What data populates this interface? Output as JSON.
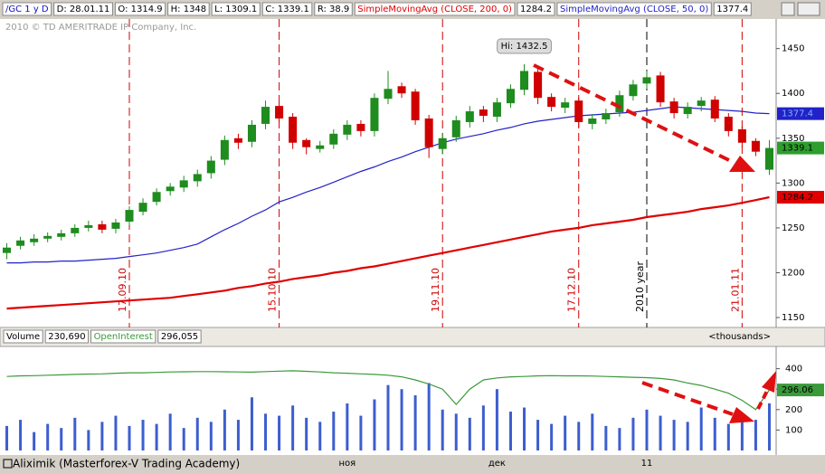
{
  "header": {
    "symbol": "/GC 1 y D",
    "fields": [
      "D: 28.01.11",
      "O: 1314.9",
      "H: 1348",
      "L: 1309.1",
      "C: 1339.1",
      "R: 38.9"
    ]
  },
  "footer": "Aliximik (Masterforex-V Trading Academy)",
  "chart_data": [
    {
      "type": "candlestick",
      "copyright": "2010 © TD AMERITRADE IP Company, Inc.",
      "annotation": "Hi: 1432.5",
      "up_color": "#1e8c1e",
      "down_color": "#d00000",
      "ylim": [
        1146,
        1486
      ],
      "yticks": [
        1150,
        1200,
        1250,
        1300,
        1350,
        1400,
        1450
      ],
      "categories": [
        null,
        null,
        null,
        null,
        null,
        null,
        null,
        null,
        null,
        "17.09.10",
        null,
        null,
        null,
        null,
        null,
        null,
        null,
        null,
        null,
        null,
        "15.10.10",
        null,
        null,
        null,
        null,
        null,
        null,
        null,
        null,
        null,
        null,
        null,
        "19.11.10",
        null,
        null,
        null,
        null,
        null,
        null,
        null,
        null,
        null,
        "17.12.10",
        null,
        null,
        null,
        null,
        "2010 year",
        null,
        null,
        null,
        null,
        null,
        null,
        "21.01.11",
        null,
        null
      ],
      "open": [
        1222,
        1230,
        1234,
        1238,
        1240,
        1244,
        1250,
        1254,
        1249,
        1257,
        1268,
        1279,
        1291,
        1295,
        1302,
        1311,
        1326,
        1350,
        1346,
        1366,
        1386,
        1374,
        1348,
        1338,
        1343,
        1354,
        1366,
        1358,
        1394,
        1408,
        1402,
        1372,
        1338,
        1351,
        1368,
        1382,
        1374,
        1389,
        1404,
        1424,
        1396,
        1384,
        1392,
        1366,
        1371,
        1379,
        1397,
        1411,
        1420,
        1391,
        1377,
        1386,
        1393,
        1374,
        1360,
        1347,
        1314.9
      ],
      "high": [
        1233,
        1240,
        1243,
        1245,
        1248,
        1254,
        1258,
        1258,
        1260,
        1274,
        1283,
        1294,
        1300,
        1308,
        1315,
        1330,
        1353,
        1355,
        1370,
        1392,
        1390,
        1378,
        1350,
        1347,
        1360,
        1370,
        1370,
        1400,
        1425,
        1412,
        1405,
        1376,
        1356,
        1375,
        1386,
        1386,
        1395,
        1410,
        1432.5,
        1428,
        1400,
        1395,
        1395,
        1377,
        1383,
        1403,
        1415,
        1425,
        1424,
        1395,
        1390,
        1396,
        1397,
        1378,
        1363,
        1350,
        1348
      ],
      "low": [
        1215,
        1226,
        1230,
        1234,
        1236,
        1240,
        1246,
        1244,
        1244,
        1253,
        1264,
        1275,
        1286,
        1290,
        1296,
        1305,
        1320,
        1338,
        1340,
        1360,
        1368,
        1338,
        1332,
        1334,
        1338,
        1348,
        1352,
        1352,
        1388,
        1395,
        1365,
        1328,
        1332,
        1346,
        1362,
        1368,
        1368,
        1384,
        1398,
        1388,
        1380,
        1378,
        1362,
        1360,
        1366,
        1374,
        1392,
        1405,
        1385,
        1372,
        1372,
        1380,
        1368,
        1352,
        1340,
        1330,
        1309.1
      ],
      "close": [
        1228,
        1236,
        1238,
        1241,
        1244,
        1250,
        1253,
        1248,
        1256,
        1270,
        1278,
        1290,
        1296,
        1303,
        1310,
        1325,
        1348,
        1345,
        1365,
        1385,
        1372,
        1345,
        1340,
        1342,
        1355,
        1365,
        1358,
        1395,
        1405,
        1400,
        1370,
        1340,
        1350,
        1370,
        1380,
        1375,
        1390,
        1405,
        1425,
        1395,
        1385,
        1390,
        1368,
        1372,
        1378,
        1398,
        1410,
        1418,
        1390,
        1378,
        1385,
        1392,
        1372,
        1358,
        1345,
        1335,
        1339.1
      ],
      "close_color": "#2e9e2e",
      "series": [
        {
          "name": "SimpleMovingAvg (CLOSE, 200, 0)",
          "color": "#e00000",
          "values": [
            1160,
            1161,
            1162,
            1163,
            1164,
            1165,
            1166,
            1167,
            1168,
            1169,
            1170,
            1171,
            1172,
            1174,
            1176,
            1178,
            1180,
            1183,
            1185,
            1188,
            1190,
            1193,
            1195,
            1197,
            1200,
            1202,
            1205,
            1207,
            1210,
            1213,
            1216,
            1219,
            1222,
            1225,
            1228,
            1231,
            1234,
            1237,
            1240,
            1243,
            1246,
            1248,
            1250,
            1253,
            1255,
            1257,
            1259,
            1262,
            1264,
            1266,
            1268,
            1271,
            1273,
            1275,
            1278,
            1281,
            1284.2
          ]
        },
        {
          "name": "SimpleMovingAvg (CLOSE, 50, 0)",
          "color": "#2222c8",
          "values": [
            1211,
            1211,
            1212,
            1212,
            1213,
            1213,
            1214,
            1215,
            1216,
            1218,
            1220,
            1222,
            1225,
            1228,
            1232,
            1240,
            1248,
            1255,
            1263,
            1270,
            1279,
            1284,
            1290,
            1295,
            1301,
            1307,
            1313,
            1318,
            1324,
            1329,
            1335,
            1340,
            1345,
            1349,
            1352,
            1355,
            1359,
            1362,
            1366,
            1369,
            1371,
            1373,
            1375,
            1376,
            1377,
            1378,
            1379,
            1381,
            1383,
            1385,
            1384,
            1383,
            1382,
            1381,
            1380,
            1378,
            1377.4
          ]
        }
      ]
    },
    {
      "type": "bar",
      "units_label": "<thousands>",
      "ylim": [
        0,
        500
      ],
      "yticks": [
        100,
        200,
        300,
        400
      ],
      "categories": [
        null,
        null,
        null,
        null,
        null,
        null,
        null,
        null,
        null,
        null,
        null,
        null,
        null,
        null,
        null,
        null,
        null,
        null,
        null,
        null,
        null,
        null,
        null,
        null,
        null,
        "ноя",
        null,
        null,
        null,
        null,
        null,
        null,
        null,
        null,
        null,
        null,
        "дек",
        null,
        null,
        null,
        null,
        null,
        null,
        null,
        null,
        null,
        null,
        "11",
        null,
        null,
        null,
        null,
        null,
        null,
        null,
        null,
        null
      ],
      "series": [
        {
          "name": "Volume",
          "type": "bar",
          "color": "#3c5ed0",
          "current_label": "230,690",
          "values": [
            120,
            150,
            90,
            130,
            110,
            160,
            100,
            140,
            170,
            120,
            150,
            130,
            180,
            110,
            160,
            140,
            200,
            150,
            260,
            180,
            170,
            220,
            160,
            140,
            190,
            230,
            170,
            250,
            320,
            300,
            270,
            330,
            200,
            180,
            160,
            220,
            300,
            190,
            210,
            150,
            130,
            170,
            140,
            180,
            120,
            110,
            160,
            200,
            170,
            150,
            140,
            210,
            160,
            130,
            180,
            150,
            230.69
          ]
        },
        {
          "name": "OpenInterest",
          "type": "line",
          "color": "#3a9a3a",
          "current_label": "296,055",
          "tag_label": "296.06",
          "values": [
            362,
            365,
            366,
            368,
            370,
            372,
            374,
            375,
            378,
            380,
            380,
            382,
            384,
            385,
            386,
            386,
            385,
            384,
            383,
            386,
            388,
            390,
            387,
            384,
            380,
            378,
            375,
            372,
            368,
            360,
            345,
            325,
            300,
            225,
            300,
            345,
            355,
            360,
            362,
            365,
            366,
            365,
            365,
            364,
            362,
            360,
            358,
            356,
            352,
            345,
            330,
            318,
            300,
            280,
            245,
            200,
            296.055
          ]
        }
      ]
    }
  ]
}
